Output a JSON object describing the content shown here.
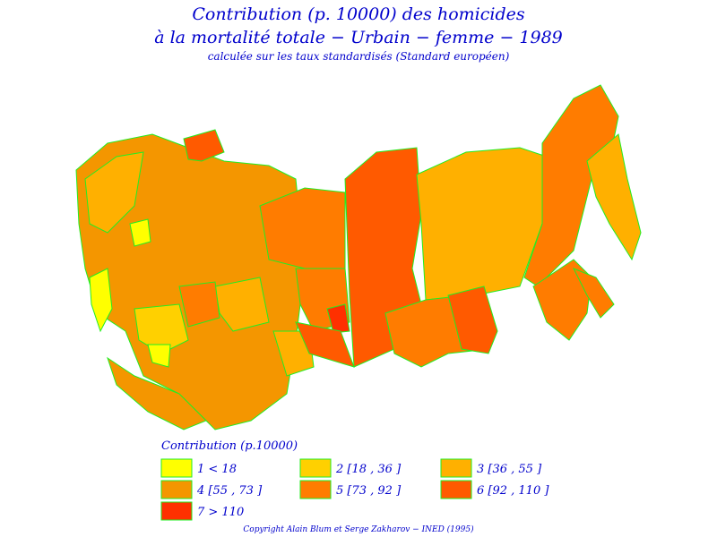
{
  "header": {
    "title": "Contribution (p. 10000) des homicides",
    "subtitle": "à la mortalité totale − Urbain − femme − 1989",
    "note": "calculée sur les taux standardisés (Standard européen)"
  },
  "legend": {
    "title": "Contribution (p.10000)",
    "items": [
      {
        "label": "1 < 18",
        "color": "#ffff00"
      },
      {
        "label": "2 [18 , 36 ]",
        "color": "#ffd000"
      },
      {
        "label": "3 [36 , 55 ]",
        "color": "#ffb000"
      },
      {
        "label": "4 [55 , 73 ]",
        "color": "#f49600"
      },
      {
        "label": "5 [73 , 92 ]",
        "color": "#ff7c00"
      },
      {
        "label": "6 [92 , 110 ]",
        "color": "#ff5a00"
      },
      {
        "label": "7 > 110",
        "color": "#ff3000"
      }
    ]
  },
  "footer": {
    "copyright": "Copyright Alain Blum et Serge Zakharov − INED (1995)"
  }
}
